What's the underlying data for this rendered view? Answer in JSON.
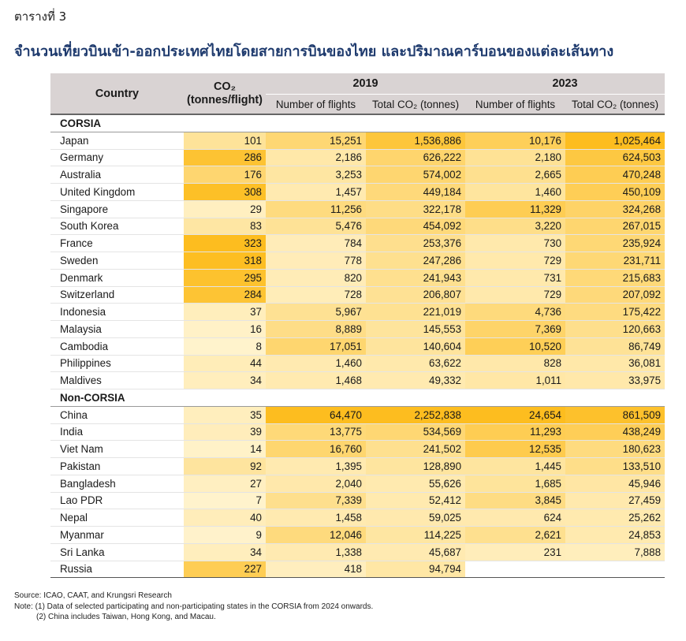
{
  "label": "ตารางที่ 3",
  "title": "จำนวนเที่ยวบินเข้า-ออกประเทศไทยโดยสายการบินของไทย และปริมาณคาร์บอนของแต่ละเส้นทาง",
  "header": {
    "country": "Country",
    "co2_line1": "CO₂",
    "co2_line2": "(tonnes/flight)",
    "year1": "2019",
    "year2": "2023",
    "flights": "Number of flights",
    "total": "Total CO₂ (tonnes)"
  },
  "colors": {
    "header_bg": "#d9d3d3",
    "title": "#1f3b6e",
    "heat_light": "#fff4d0",
    "heat_dark": "#fdbd1f"
  },
  "groups": [
    {
      "name": "CORSIA",
      "rows": [
        {
          "country": "Japan",
          "co2": "101",
          "f2019": "15,251",
          "t2019": "1,536,886",
          "f2023": "10,176",
          "t2023": "1,025,464"
        },
        {
          "country": "Germany",
          "co2": "286",
          "f2019": "2,186",
          "t2019": "626,222",
          "f2023": "2,180",
          "t2023": "624,503"
        },
        {
          "country": "Australia",
          "co2": "176",
          "f2019": "3,253",
          "t2019": "574,002",
          "f2023": "2,665",
          "t2023": "470,248"
        },
        {
          "country": "United Kingdom",
          "co2": "308",
          "f2019": "1,457",
          "t2019": "449,184",
          "f2023": "1,460",
          "t2023": "450,109"
        },
        {
          "country": "Singapore",
          "co2": "29",
          "f2019": "11,256",
          "t2019": "322,178",
          "f2023": "11,329",
          "t2023": "324,268"
        },
        {
          "country": "South Korea",
          "co2": "83",
          "f2019": "5,476",
          "t2019": "454,092",
          "f2023": "3,220",
          "t2023": "267,015"
        },
        {
          "country": "France",
          "co2": "323",
          "f2019": "784",
          "t2019": "253,376",
          "f2023": "730",
          "t2023": "235,924"
        },
        {
          "country": "Sweden",
          "co2": "318",
          "f2019": "778",
          "t2019": "247,286",
          "f2023": "729",
          "t2023": "231,711"
        },
        {
          "country": "Denmark",
          "co2": "295",
          "f2019": "820",
          "t2019": "241,943",
          "f2023": "731",
          "t2023": "215,683"
        },
        {
          "country": "Switzerland",
          "co2": "284",
          "f2019": "728",
          "t2019": "206,807",
          "f2023": "729",
          "t2023": "207,092"
        },
        {
          "country": "Indonesia",
          "co2": "37",
          "f2019": "5,967",
          "t2019": "221,019",
          "f2023": "4,736",
          "t2023": "175,422"
        },
        {
          "country": "Malaysia",
          "co2": "16",
          "f2019": "8,889",
          "t2019": "145,553",
          "f2023": "7,369",
          "t2023": "120,663"
        },
        {
          "country": "Cambodia",
          "co2": "8",
          "f2019": "17,051",
          "t2019": "140,604",
          "f2023": "10,520",
          "t2023": "86,749"
        },
        {
          "country": "Philippines",
          "co2": "44",
          "f2019": "1,460",
          "t2019": "63,622",
          "f2023": "828",
          "t2023": "36,081"
        },
        {
          "country": "Maldives",
          "co2": "34",
          "f2019": "1,468",
          "t2019": "49,332",
          "f2023": "1,011",
          "t2023": "33,975"
        }
      ]
    },
    {
      "name": "Non-CORSIA",
      "rows": [
        {
          "country": "China",
          "co2": "35",
          "f2019": "64,470",
          "t2019": "2,252,838",
          "f2023": "24,654",
          "t2023": "861,509"
        },
        {
          "country": "India",
          "co2": "39",
          "f2019": "13,775",
          "t2019": "534,569",
          "f2023": "11,293",
          "t2023": "438,249"
        },
        {
          "country": "Viet Nam",
          "co2": "14",
          "f2019": "16,760",
          "t2019": "241,502",
          "f2023": "12,535",
          "t2023": "180,623"
        },
        {
          "country": "Pakistan",
          "co2": "92",
          "f2019": "1,395",
          "t2019": "128,890",
          "f2023": "1,445",
          "t2023": "133,510"
        },
        {
          "country": "Bangladesh",
          "co2": "27",
          "f2019": "2,040",
          "t2019": "55,626",
          "f2023": "1,685",
          "t2023": "45,946"
        },
        {
          "country": "Lao PDR",
          "co2": "7",
          "f2019": "7,339",
          "t2019": "52,412",
          "f2023": "3,845",
          "t2023": "27,459"
        },
        {
          "country": "Nepal",
          "co2": "40",
          "f2019": "1,458",
          "t2019": "59,025",
          "f2023": "624",
          "t2023": "25,262"
        },
        {
          "country": "Myanmar",
          "co2": "9",
          "f2019": "12,046",
          "t2019": "114,225",
          "f2023": "2,621",
          "t2023": "24,853"
        },
        {
          "country": "Sri Lanka",
          "co2": "34",
          "f2019": "1,338",
          "t2019": "45,687",
          "f2023": "231",
          "t2023": "7,888"
        },
        {
          "country": "Russia",
          "co2": "227",
          "f2019": "418",
          "t2019": "94,794",
          "f2023": "",
          "t2023": ""
        }
      ]
    }
  ],
  "notes": {
    "source": "Source: ICAO, CAAT, and Krungsri Research",
    "note1": "Note: (1) Data of selected participating and non-participating states in the CORSIA from 2024 onwards.",
    "note2": "(2) China includes Taiwan, Hong Kong, and Macau."
  }
}
